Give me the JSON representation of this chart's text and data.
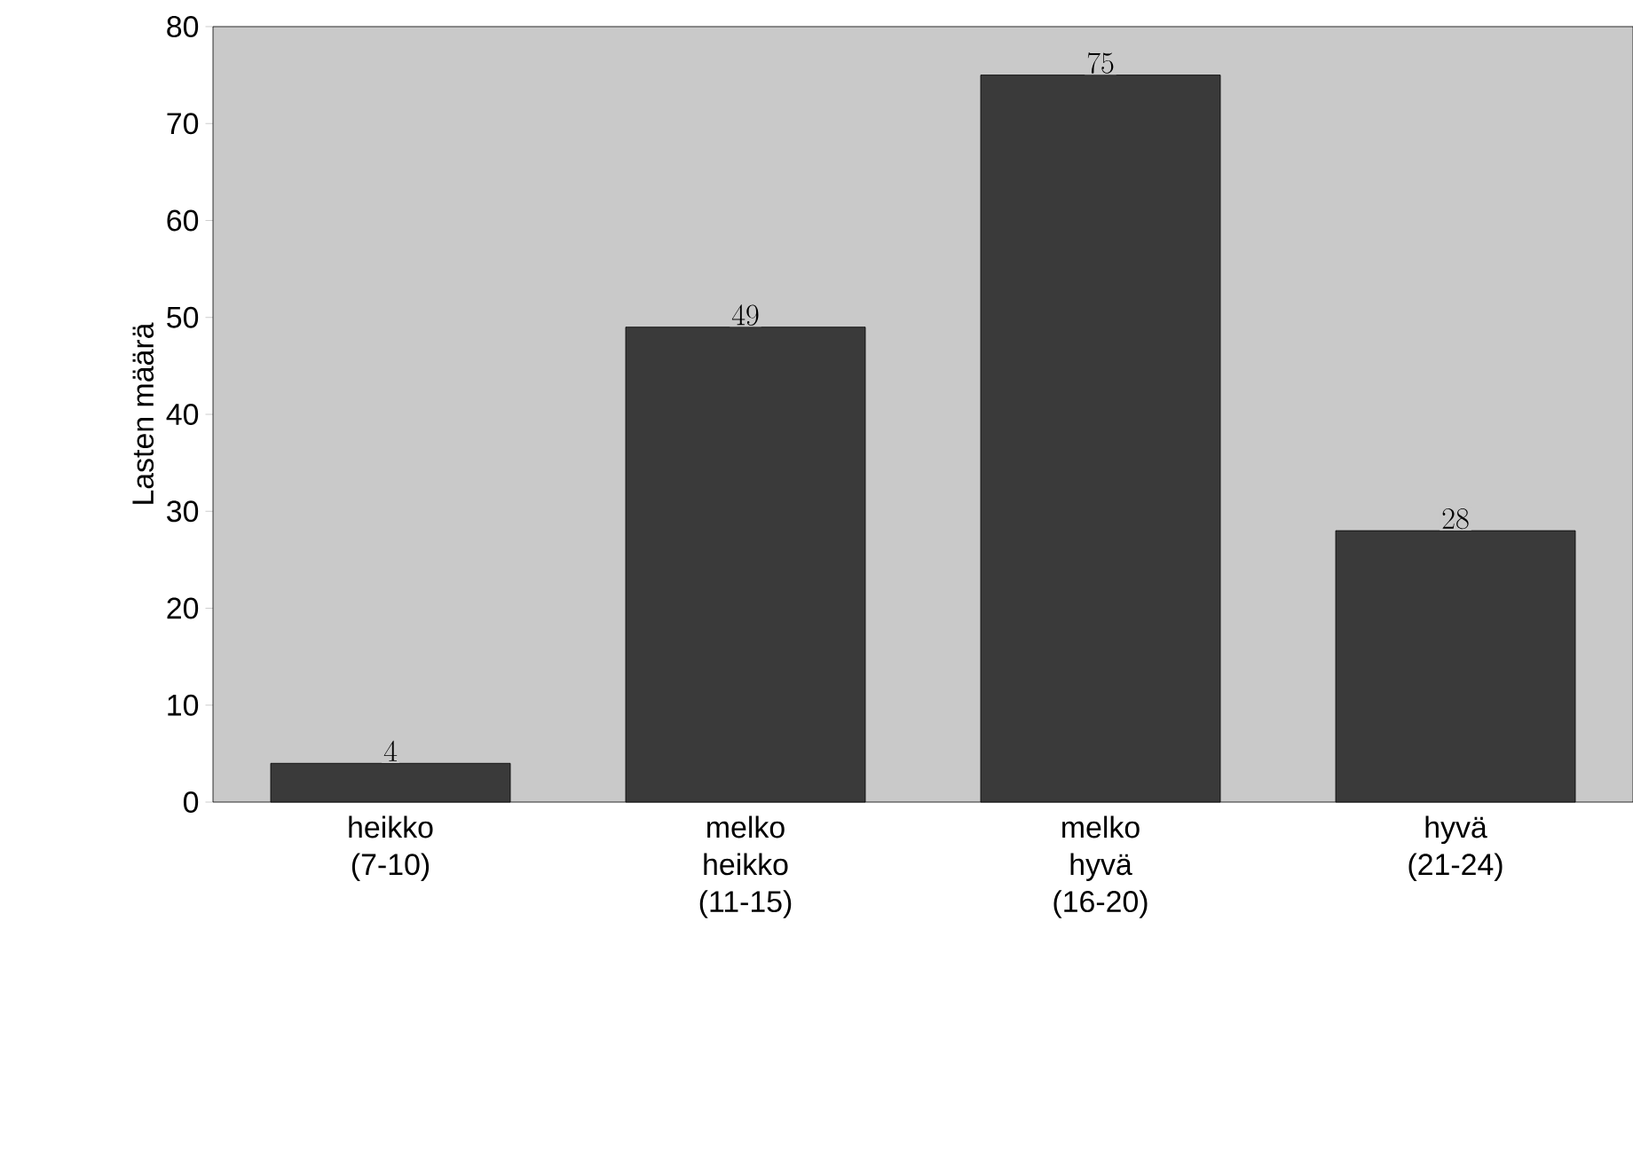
{
  "chart_data": {
    "type": "bar",
    "ylabel": "Lasten määrä",
    "categories": [
      "heikko (7-10)",
      "melko heikko (11-15)",
      "melko hyvä (16-20)",
      "hyvä (21-24)"
    ],
    "values": [
      4,
      49,
      75,
      28
    ],
    "color": "#3a3a3a",
    "ylim": [
      0,
      80
    ],
    "yticks": [
      0,
      10,
      20,
      30,
      40,
      50,
      60,
      70,
      80
    ],
    "grid": false,
    "data_labels": true
  }
}
